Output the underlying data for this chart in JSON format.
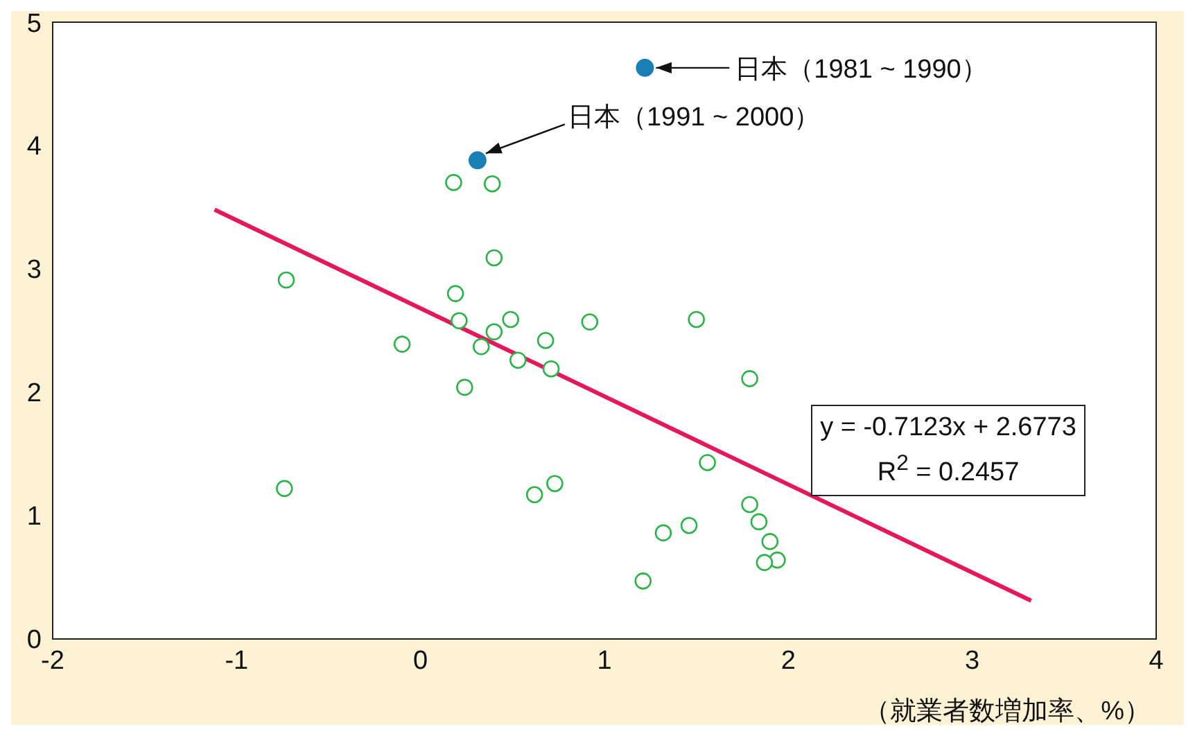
{
  "chart_data": {
    "type": "scatter",
    "xlabel": "（就業者数増加率、%）",
    "xlim": [
      -2,
      4
    ],
    "xticks": [
      -2,
      -1,
      0,
      1,
      2,
      3,
      4
    ],
    "ylim": [
      0,
      5
    ],
    "yticks": [
      0,
      1,
      2,
      3,
      4,
      5
    ],
    "series": [
      {
        "marker": "circle",
        "color": "#1a7fb5",
        "x": [
          1.22,
          0.31
        ],
        "values": [
          4.63,
          3.88
        ]
      },
      {
        "marker": "circle",
        "color": "#2db34a",
        "x": [
          0.18,
          0.39,
          0.4,
          -0.73,
          0.19,
          0.21,
          0.49,
          0.4,
          0.92,
          1.5,
          -0.1,
          0.33,
          0.68,
          0.53,
          0.71,
          1.79,
          0.24,
          1.56,
          -0.74,
          0.73,
          0.62,
          1.79,
          1.84,
          1.46,
          1.32,
          1.9,
          1.94,
          1.87,
          1.21
        ],
        "values": [
          3.7,
          3.69,
          3.09,
          2.91,
          2.8,
          2.58,
          2.59,
          2.49,
          2.57,
          2.59,
          2.39,
          2.37,
          2.42,
          2.26,
          2.19,
          2.11,
          2.04,
          1.43,
          1.22,
          1.26,
          1.17,
          1.09,
          0.95,
          0.92,
          0.86,
          0.79,
          0.64,
          0.62,
          0.47
        ]
      },
      {
        "type": "line",
        "color": "#e5195a",
        "x": [
          -1.12,
          3.32
        ],
        "values": [
          3.48,
          0.31
        ]
      }
    ],
    "annotations": [
      {
        "text": "日本（1981 ~ 1990）",
        "x": 1.22,
        "y": 4.63
      },
      {
        "text": "日本（1991 ~ 2000）",
        "x": 0.31,
        "y": 3.88
      },
      "y = -0.7123x + 2.6773",
      "R$^{2}$ = 0.2457"
    ]
  }
}
